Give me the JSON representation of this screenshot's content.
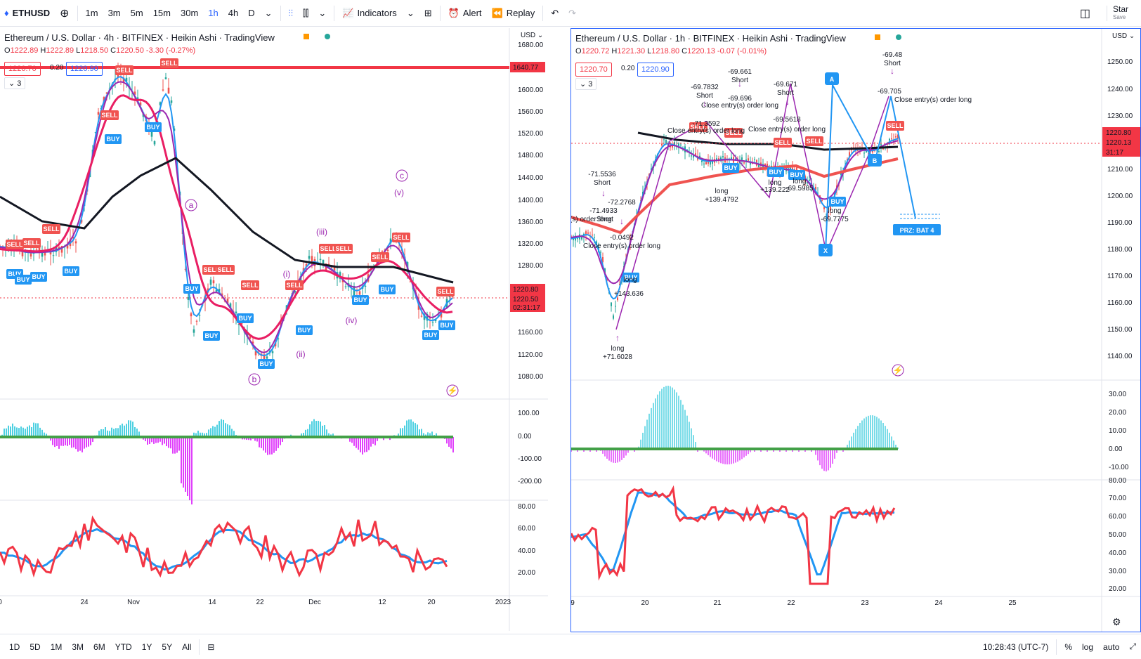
{
  "toolbar": {
    "symbol": "ETHUSD",
    "intervals": [
      "1m",
      "3m",
      "5m",
      "15m",
      "30m",
      "1h",
      "4h",
      "D"
    ],
    "active_interval": "1h",
    "indicators_label": "Indicators",
    "alert_label": "Alert",
    "replay_label": "Replay",
    "start_label": "Star",
    "save_label": "Save"
  },
  "left_pane": {
    "title": "Ethereum / U.S. Dollar · 4h · BITFINEX · Heikin Ashi · TradingView",
    "ohlc": {
      "o": "1222.89",
      "h": "1222.89",
      "l": "1218.50",
      "c": "1220.50",
      "chg": "-3.30 (-0.27%)"
    },
    "bid": "1220.70",
    "spread": "0.20",
    "ask": "1220.90",
    "indicator_count": "3",
    "currency": "USD",
    "price_ticks": [
      "1680.00",
      "1640.77",
      "1600.00",
      "1560.00",
      "1520.00",
      "1480.00",
      "1440.00",
      "1400.00",
      "1360.00",
      "1320.00",
      "1280.00",
      "1220.80",
      "1220.50",
      "02:31:17",
      "1160.00",
      "1120.00",
      "1080.00"
    ],
    "osc_ticks": [
      "100.00",
      "0.00",
      "-100.00",
      "-200.00"
    ],
    "rsi_ticks": [
      "80.00",
      "60.00",
      "40.00",
      "20.00"
    ],
    "time_ticks": [
      "0",
      "24",
      "Nov",
      "14",
      "22",
      "Dec",
      "12",
      "20",
      "2023"
    ],
    "waves": [
      "a",
      "b",
      "c",
      "(i)",
      "(ii)",
      "(iii)",
      "(iv)",
      "(v)"
    ]
  },
  "right_pane": {
    "title": "Ethereum / U.S. Dollar · 1h · BITFINEX · Heikin Ashi · TradingView",
    "ohlc": {
      "o": "1220.72",
      "h": "1221.30",
      "l": "1218.80",
      "c": "1220.13",
      "chg": "-0.07 (-0.01%)"
    },
    "bid": "1220.70",
    "spread": "0.20",
    "ask": "1220.90",
    "indicator_count": "3",
    "currency": "USD",
    "price_ticks": [
      "1250.00",
      "1240.00",
      "1230.00",
      "1220.80",
      "1220.13",
      "31:17",
      "1210.00",
      "1200.00",
      "1190.00",
      "1180.00",
      "1170.00",
      "1160.00",
      "1150.00",
      "1140.00"
    ],
    "osc_ticks": [
      "30.00",
      "20.00",
      "10.00",
      "0.00",
      "-10.00"
    ],
    "rsi_ticks": [
      "80.00",
      "70.00",
      "60.00",
      "50.00",
      "40.00",
      "30.00",
      "20.00"
    ],
    "time_ticks": [
      "9",
      "20",
      "21",
      "22",
      "23",
      "24",
      "25"
    ],
    "prz_label": "PRZ: BAT 4",
    "pattern_points": [
      "A",
      "B",
      "X"
    ],
    "annotations": [
      "-71.5536",
      "Short",
      "-72.2768",
      "-71.4933",
      "Short",
      "se entry(s) order long",
      "-0.0492",
      "Close entry(s) order long",
      "long",
      "+143.636",
      "long",
      "+71.6028",
      "-69.7832",
      "Short",
      "-71.3592",
      "Close entry(s) order long",
      "-69.661",
      "Short",
      "-69.696",
      "Close entry(s) order long",
      "long",
      "+139.4792",
      "-69.671",
      "Short",
      "-69.5618",
      "Close entry(s) order long",
      "long",
      "+139.222",
      "long",
      "-69.5985",
      "long",
      "-69.7775",
      "-69.48",
      "Short",
      "-69.705",
      "Close entry(s) order long"
    ]
  },
  "signals": {
    "buy": "BUY",
    "sell": "SELL"
  },
  "bottom": {
    "ranges": [
      "1D",
      "5D",
      "1M",
      "3M",
      "6M",
      "YTD",
      "1Y",
      "5Y",
      "All"
    ],
    "clock": "10:28:43 (UTC-7)",
    "percent": "%",
    "log": "log",
    "auto": "auto"
  },
  "colors": {
    "red": "#f23645",
    "blue": "#2962ff",
    "buy": "#2196f3",
    "sell": "#f05350",
    "purple": "#9c27b0"
  }
}
